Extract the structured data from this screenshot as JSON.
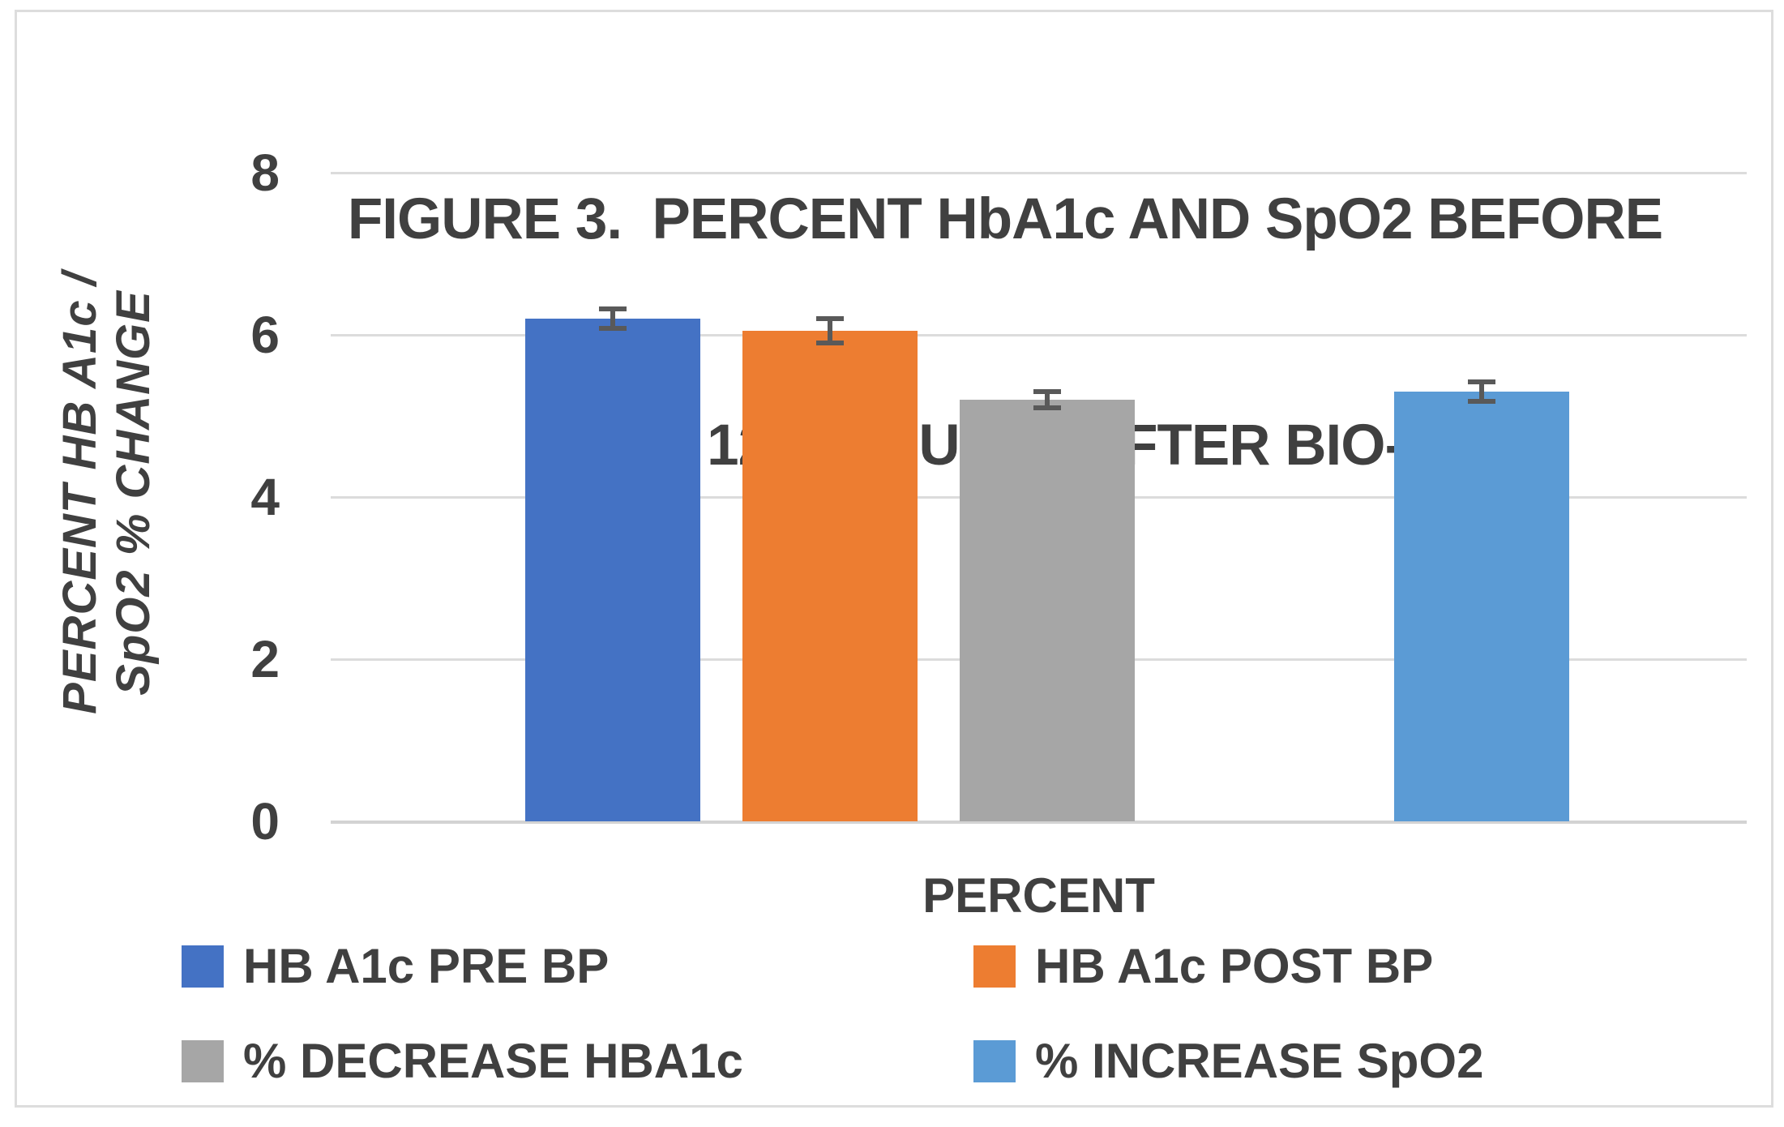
{
  "chart": {
    "title_line1": "FIGURE 3.  PERCENT HbA1c AND SpO2 BEFORE",
    "title_line2": "AND 120 MINUTES AFTER BIO-P"
  },
  "chart_data": {
    "type": "bar",
    "title": "FIGURE 3. PERCENT HbA1c AND SpO2 BEFORE AND 120 MINUTES AFTER BIO-P",
    "categories": [
      "PERCENT"
    ],
    "xlabel": "PERCENT",
    "ylabel": "PERCENT HB A1c / SpO2 % CHANGE",
    "ylabel_line1": "PERCENT HB A1c /",
    "ylabel_line2": "SpO2 % CHANGE",
    "ylim": [
      0,
      8
    ],
    "yticks": [
      8,
      6,
      4,
      2,
      0
    ],
    "grid": true,
    "error_bars": true,
    "legend_position": "bottom",
    "n_slots": 5,
    "series": [
      {
        "name": "HB A1c PRE BP",
        "values": [
          6.2
        ],
        "error": [
          0.12
        ],
        "color": "#4472C4",
        "slot": 0
      },
      {
        "name": "HB A1c POST BP",
        "values": [
          6.05
        ],
        "error": [
          0.15
        ],
        "color": "#ED7D31",
        "slot": 1
      },
      {
        "name": "% DECREASE HBA1c",
        "values": [
          5.2
        ],
        "error": [
          0.1
        ],
        "color": "#A6A6A6",
        "slot": 2
      },
      {
        "name": "% INCREASE SpO2",
        "values": [
          5.3
        ],
        "error": [
          0.12
        ],
        "color": "#5B9BD5",
        "slot": 4
      }
    ]
  },
  "colors": {
    "text": "#404040",
    "gridline": "#DCDCDC",
    "axis_line": "#D3D3D3",
    "border": "#DDDDDD",
    "error_bar": "#595959",
    "background": "#FFFFFF"
  }
}
